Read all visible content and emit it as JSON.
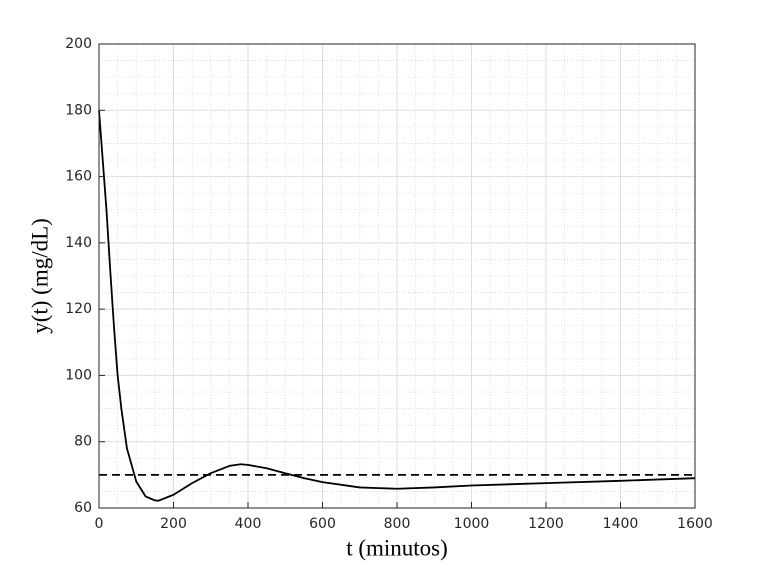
{
  "chart_data": {
    "type": "line",
    "xlabel": "t (minutos)",
    "ylabel": "y(t) (mg/dL)",
    "series": [
      {
        "color": "#000000",
        "dash": false,
        "x": [
          0,
          10,
          20,
          30,
          40,
          50,
          60,
          75,
          100,
          125,
          150,
          160,
          200,
          250,
          300,
          350,
          380,
          400,
          450,
          500,
          550,
          600,
          700,
          800,
          900,
          1000,
          1200,
          1400,
          1600
        ],
        "values": [
          180,
          165,
          150,
          132,
          115,
          100,
          90,
          78,
          68,
          63.5,
          62.3,
          62.2,
          64,
          67.5,
          70.5,
          72.7,
          73.2,
          73,
          72,
          70.5,
          69,
          67.8,
          66.2,
          65.8,
          66.2,
          66.8,
          67.5,
          68.2,
          69
        ]
      },
      {
        "color": "#000000",
        "dash": true,
        "x": [
          0,
          1600
        ],
        "values": [
          70,
          70
        ]
      }
    ],
    "xlim": [
      0,
      1600
    ],
    "xticks": [
      0,
      200,
      400,
      600,
      800,
      1000,
      1200,
      1400,
      1600
    ],
    "ylim": [
      60,
      200
    ],
    "yticks": [
      60,
      80,
      100,
      120,
      140,
      160,
      180,
      200
    ],
    "grid": true,
    "minor_grid": true
  }
}
